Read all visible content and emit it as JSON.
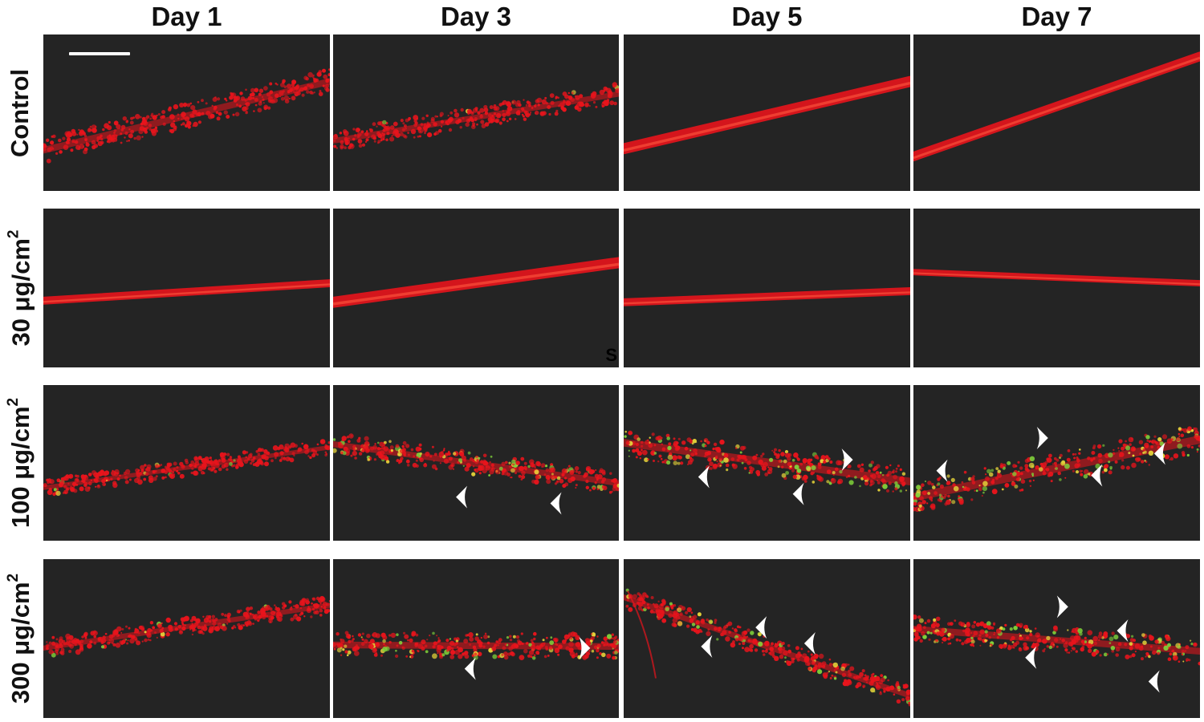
{
  "columns": [
    "Day 1",
    "Day 3",
    "Day 5",
    "Day 7"
  ],
  "rows": [
    {
      "label": "Control",
      "unit_sup": ""
    },
    {
      "label": "30 μg/cm",
      "unit_sup": "2"
    },
    {
      "label": "100 μg/cm",
      "unit_sup": "2"
    },
    {
      "label": "300 μg/cm",
      "unit_sup": "2"
    }
  ],
  "panel_letter": "S",
  "colors": {
    "panel_background": "#242424",
    "tissue_red": "#e8141c",
    "marker_green": "#7fd23a",
    "marker_yellow": "#e6d43a",
    "arrowhead": "#ffffff"
  },
  "icons": {
    "arrowhead": "arrowhead-icon",
    "scale_bar": "scale-bar-icon"
  },
  "arrowhead_counts": [
    [
      0,
      0,
      0,
      0
    ],
    [
      0,
      0,
      0,
      0
    ],
    [
      0,
      2,
      3,
      4
    ],
    [
      0,
      2,
      3,
      4
    ]
  ]
}
